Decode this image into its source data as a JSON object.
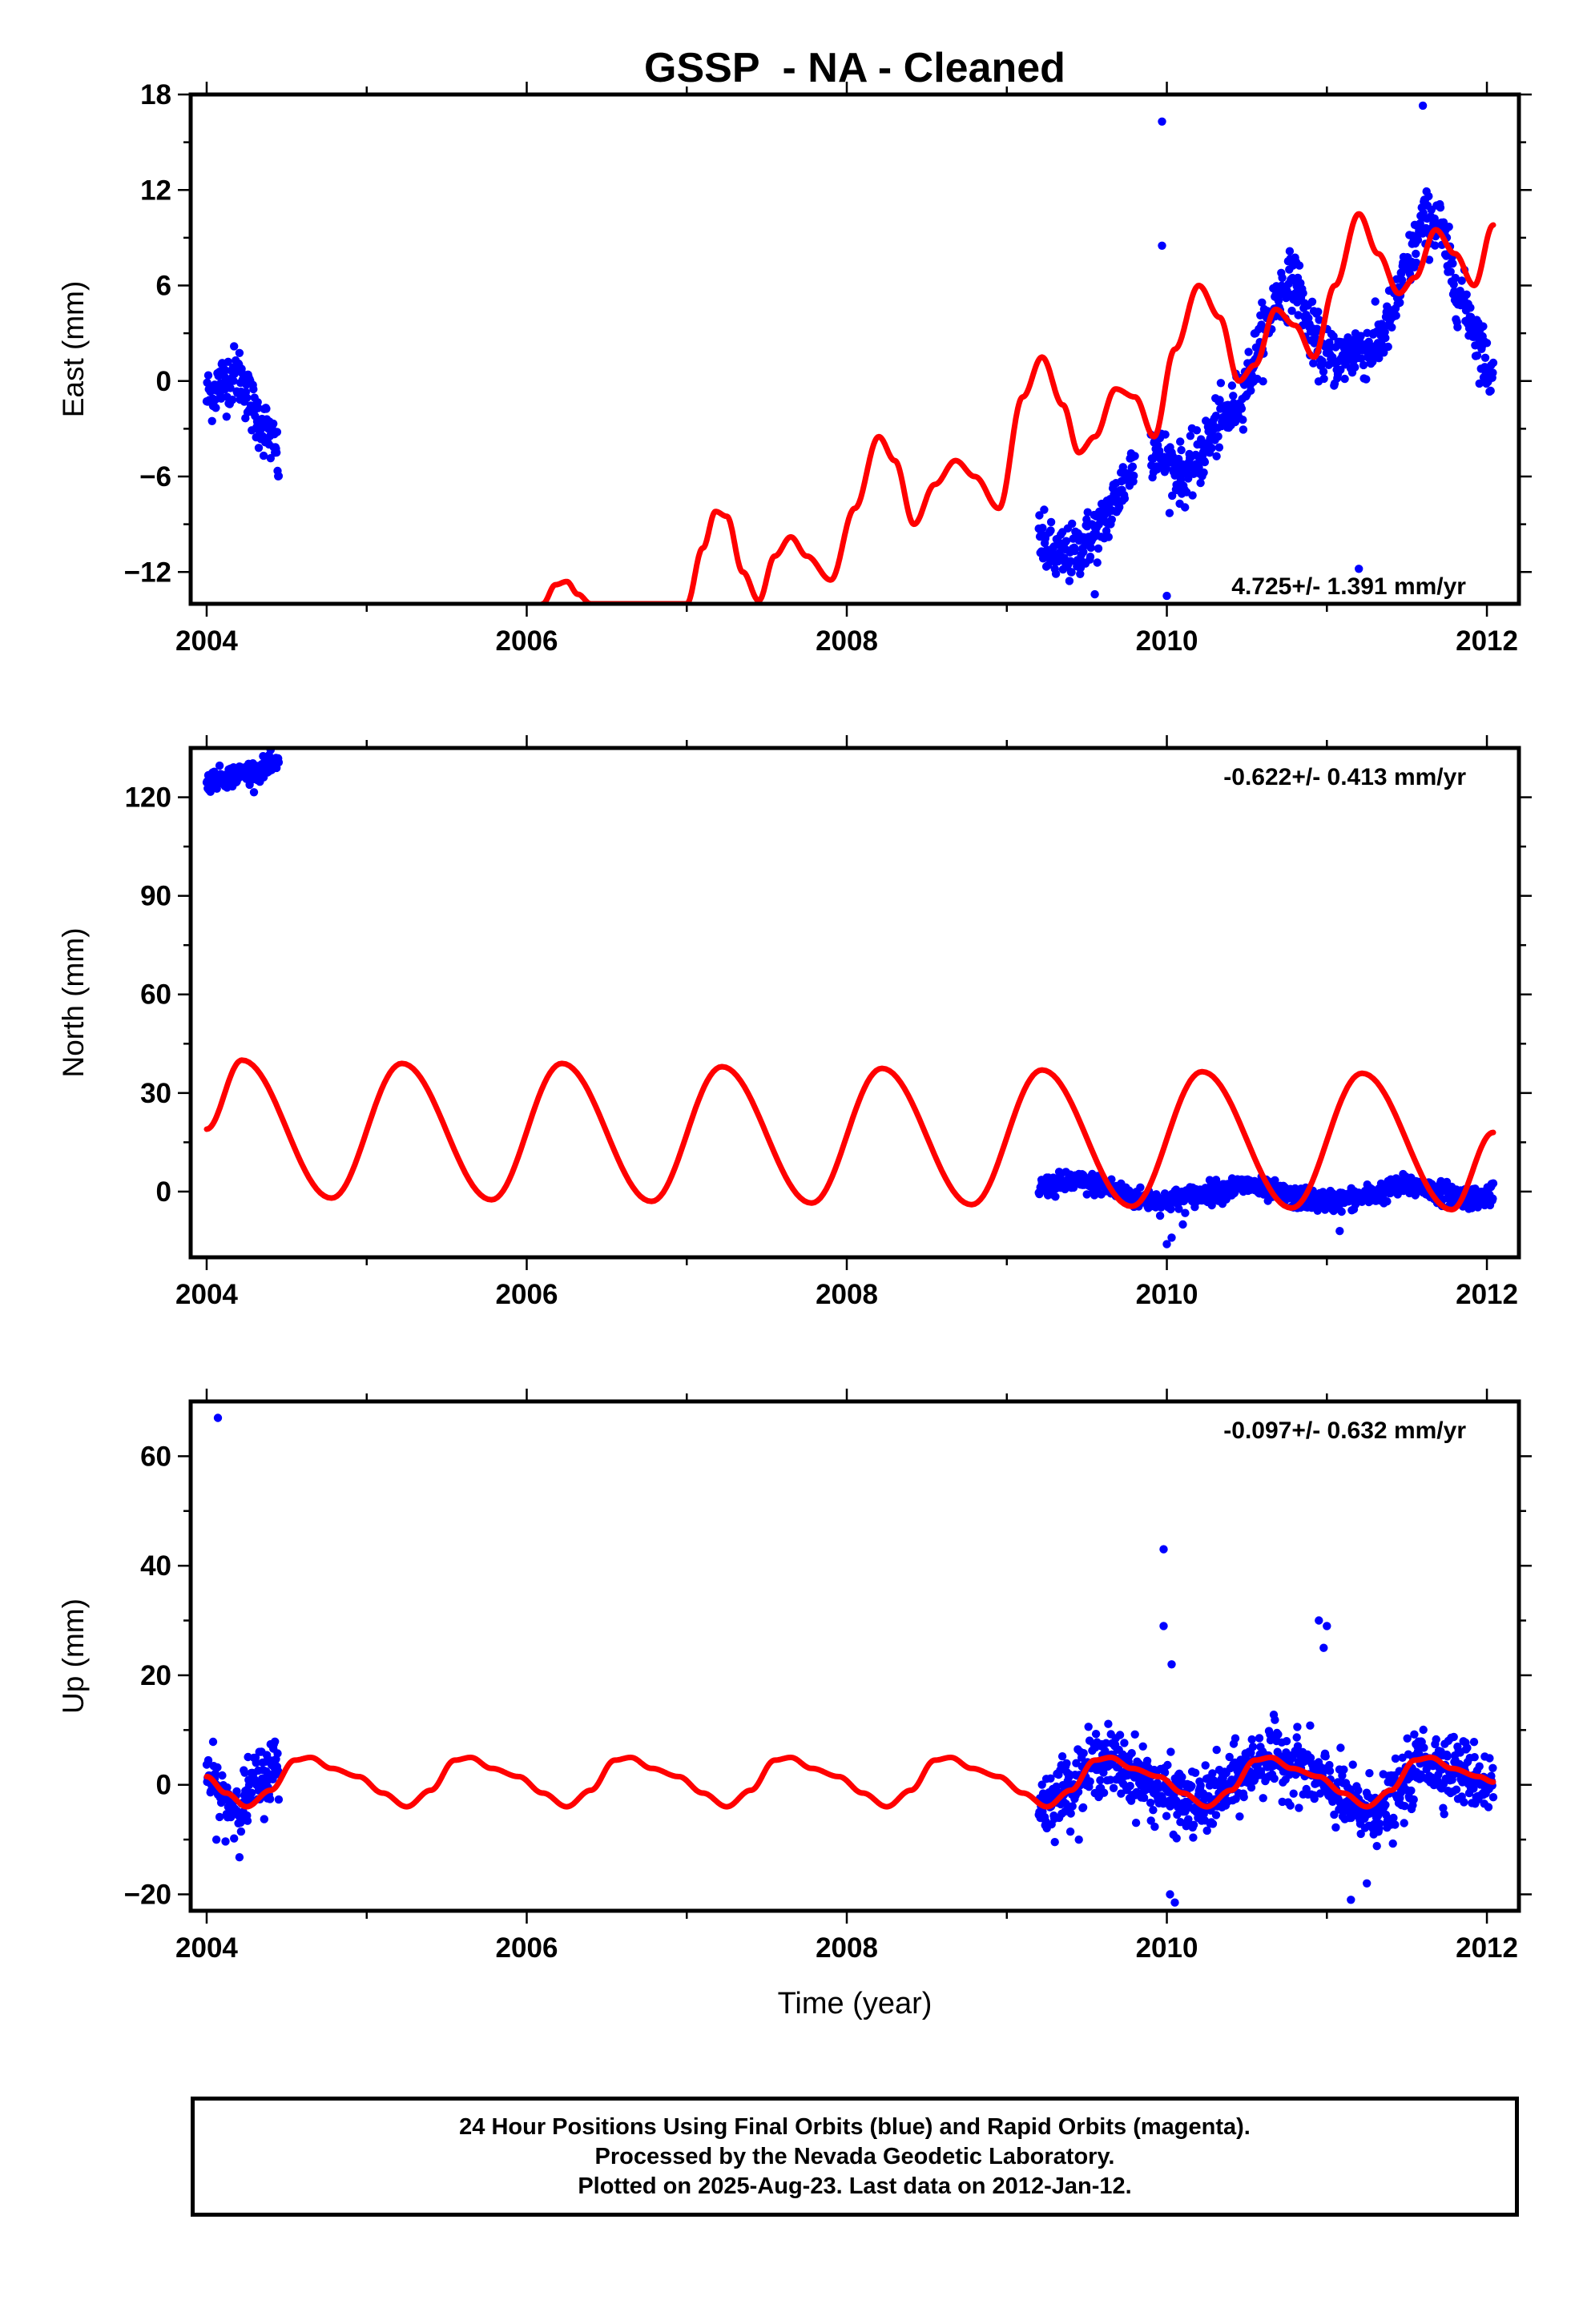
{
  "chart_data": [
    {
      "type": "scatter",
      "title": "GSSP  - NA - Cleaned",
      "ylabel": "East (mm)",
      "xlim": [
        2003.9,
        2012.2
      ],
      "ylim": [
        -14,
        18
      ],
      "xticks": [
        2004,
        2006,
        2008,
        2010,
        2012
      ],
      "yticks": [
        -12,
        -6,
        0,
        6,
        12,
        18
      ],
      "ytick_labels": [
        "−12",
        "−6",
        "0",
        "6",
        "12",
        "18"
      ],
      "grid": false,
      "rate_label": "4.725+/- 1.391 mm/yr",
      "series": [
        {
          "kind": "points",
          "color": "#0000ff",
          "segments": [
            {
              "x": [
                2004.0,
                2004.1,
                2004.2,
                2004.3,
                2004.4,
                2004.45
              ],
              "y": [
                -1,
                0,
                0.5,
                -2,
                -3.5,
                -5
              ]
            },
            {
              "x": [
                2009.2,
                2009.3,
                2009.4,
                2009.5,
                2009.6,
                2009.7,
                2009.8
              ],
              "y": [
                -10,
                -11,
                -11,
                -10,
                -9,
                -7,
                -5
              ]
            },
            {
              "x": [
                2009.9,
                2010.0,
                2010.1,
                2010.2,
                2010.3,
                2010.4,
                2010.5,
                2010.6,
                2010.7,
                2010.8,
                2010.9,
                2011.0,
                2011.1,
                2011.2,
                2011.3,
                2011.4,
                2011.5,
                2011.6,
                2011.7,
                2011.8,
                2011.9,
                2012.0,
                2012.04
              ],
              "y": [
                -4,
                -5,
                -6,
                -5,
                -3,
                -2,
                0,
                3,
                5.5,
                6.5,
                3,
                1.5,
                1.5,
                2,
                2,
                4,
                7,
                10,
                10,
                6,
                4,
                1,
                0
              ]
            }
          ],
          "outliers": [
            {
              "x": 2009.97,
              "y": 16.3
            },
            {
              "x": 2009.97,
              "y": 8.5
            },
            {
              "x": 2011.6,
              "y": 17.3
            },
            {
              "x": 2011.2,
              "y": -11.8
            },
            {
              "x": 2010.0,
              "y": -13.5
            },
            {
              "x": 2009.55,
              "y": -13.4
            }
          ]
        },
        {
          "kind": "line",
          "color": "#ff0000",
          "note": "seasonal model fit",
          "x": [
            2006.1,
            2006.18,
            2006.25,
            2006.32,
            2006.4,
            2007.0,
            2007.1,
            2007.18,
            2007.25,
            2007.35,
            2007.45,
            2007.55,
            2007.65,
            2007.75,
            2007.9,
            2008.05,
            2008.2,
            2008.3,
            2008.42,
            2008.55,
            2008.68,
            2008.8,
            2008.95,
            2009.1,
            2009.22,
            2009.35,
            2009.45,
            2009.55,
            2009.68,
            2009.8,
            2009.92,
            2010.05,
            2010.2,
            2010.33,
            2010.45,
            2010.55,
            2010.68,
            2010.8,
            2010.92,
            2011.05,
            2011.2,
            2011.32,
            2011.45,
            2011.55,
            2011.68,
            2011.8,
            2011.92,
            2012.04
          ],
          "y": [
            -14,
            -12.8,
            -12.6,
            -13.4,
            -14,
            -14,
            -10.5,
            -8.2,
            -8.5,
            -12,
            -13.8,
            -11,
            -9.8,
            -11,
            -12.5,
            -8,
            -3.5,
            -5,
            -9,
            -6.5,
            -5,
            -6,
            -8,
            -1,
            1.5,
            -1.5,
            -4.5,
            -3.5,
            -0.5,
            -1,
            -3.5,
            2,
            6,
            4,
            0,
            1,
            4.5,
            3.5,
            1.5,
            6,
            10.5,
            8,
            5.5,
            6.5,
            9.5,
            8,
            6,
            9.8
          ]
        }
      ]
    },
    {
      "type": "scatter",
      "ylabel": "North (mm)",
      "xlim": [
        2003.9,
        2012.2
      ],
      "ylim": [
        -20,
        135
      ],
      "xticks": [
        2004,
        2006,
        2008,
        2010,
        2012
      ],
      "yticks": [
        0,
        30,
        60,
        90,
        120
      ],
      "ytick_labels": [
        "0",
        "30",
        "60",
        "90",
        "120"
      ],
      "grid": false,
      "rate_label": "-0.622+/- 0.413 mm/yr",
      "series": [
        {
          "kind": "points",
          "color": "#0000ff",
          "segments": [
            {
              "x": [
                2004.0,
                2004.1,
                2004.2,
                2004.3,
                2004.45
              ],
              "y": [
                125,
                126,
                127,
                128,
                130
              ]
            },
            {
              "x": [
                2009.2,
                2009.4,
                2009.6,
                2009.8,
                2010.0,
                2010.2,
                2010.5,
                2010.8,
                2011.0,
                2011.2,
                2011.5,
                2011.7,
                2011.9,
                2012.04
              ],
              "y": [
                1,
                3,
                2,
                -2,
                -3,
                -1,
                2,
                -2,
                -3,
                -2,
                2,
                0,
                -2,
                -1
              ]
            }
          ],
          "outliers": [
            {
              "x": 2010.03,
              "y": -14
            },
            {
              "x": 2010.0,
              "y": -16
            },
            {
              "x": 2011.08,
              "y": -12
            },
            {
              "x": 2010.1,
              "y": -10
            }
          ]
        },
        {
          "kind": "line",
          "color": "#ff0000",
          "note": "seasonal model fit",
          "period": 1.0,
          "phase_peak": 2004.22,
          "x": [
            2004.0,
            2004.22,
            2004.78,
            2005.22,
            2005.78,
            2006.22,
            2006.78,
            2007.22,
            2007.78,
            2008.22,
            2008.78,
            2009.22,
            2009.78,
            2010.22,
            2010.78,
            2011.22,
            2011.78,
            2012.04
          ],
          "y": [
            19,
            40,
            -2,
            39,
            -2.5,
            39,
            -3,
            38,
            -3.5,
            37.5,
            -4,
            37,
            -4.5,
            36.5,
            -5,
            36,
            -5.5,
            18
          ]
        }
      ]
    },
    {
      "type": "scatter",
      "ylabel": "Up (mm)",
      "xlabel": "Time (year)",
      "xlim": [
        2003.9,
        2012.2
      ],
      "ylim": [
        -23,
        70
      ],
      "xticks": [
        2004,
        2006,
        2008,
        2010,
        2012
      ],
      "yticks": [
        -20,
        0,
        20,
        40,
        60
      ],
      "ytick_labels": [
        "−20",
        "0",
        "20",
        "40",
        "60"
      ],
      "grid": false,
      "rate_label": "-0.097+/- 0.632 mm/yr",
      "series": [
        {
          "kind": "points",
          "color": "#0000ff",
          "segments": [
            {
              "x": [
                2004.0,
                2004.1,
                2004.2,
                2004.3,
                2004.45
              ],
              "y": [
                2,
                -3,
                -4,
                0,
                4
              ]
            },
            {
              "x": [
                2009.2,
                2009.4,
                2009.6,
                2009.8,
                2010.0,
                2010.2,
                2010.4,
                2010.6,
                2010.8,
                2011.0,
                2011.2,
                2011.4,
                2011.6,
                2011.8,
                2012.04
              ],
              "y": [
                -4,
                0,
                5,
                2,
                -2,
                -4,
                0,
                5,
                4,
                0,
                -5,
                -4,
                5,
                3,
                0
              ]
            }
          ],
          "outliers": [
            {
              "x": 2004.07,
              "y": 67
            },
            {
              "x": 2009.98,
              "y": 43
            },
            {
              "x": 2009.98,
              "y": 29
            },
            {
              "x": 2010.03,
              "y": 22
            },
            {
              "x": 2010.02,
              "y": -20
            },
            {
              "x": 2010.05,
              "y": -21.5
            },
            {
              "x": 2010.95,
              "y": 30
            },
            {
              "x": 2011.0,
              "y": 29
            },
            {
              "x": 2010.98,
              "y": 25
            },
            {
              "x": 2011.25,
              "y": -18
            },
            {
              "x": 2011.15,
              "y": -21
            }
          ]
        },
        {
          "kind": "line",
          "color": "#ff0000",
          "note": "seasonal model fit",
          "x": [
            2004.0,
            2004.12,
            2004.25,
            2004.4,
            2004.55,
            2004.65,
            2004.78,
            2004.95,
            2005.1,
            2005.25,
            2005.4,
            2005.55,
            2005.65,
            2005.78,
            2005.95,
            2006.1,
            2006.25,
            2006.4,
            2006.55,
            2006.65,
            2006.78,
            2006.95,
            2007.1,
            2007.25,
            2007.4,
            2007.55,
            2007.65,
            2007.78,
            2007.95,
            2008.1,
            2008.25,
            2008.4,
            2008.55,
            2008.65,
            2008.78,
            2008.95,
            2009.1,
            2009.25,
            2009.4,
            2009.55,
            2009.65,
            2009.78,
            2009.95,
            2010.1,
            2010.25,
            2010.4,
            2010.55,
            2010.65,
            2010.78,
            2010.95,
            2011.1,
            2011.25,
            2011.4,
            2011.55,
            2011.65,
            2011.78,
            2011.95,
            2012.04
          ],
          "y": [
            1.5,
            -1.5,
            -4,
            -1,
            4.5,
            5,
            3,
            1.5,
            -1.5,
            -4,
            -1,
            4.5,
            5,
            3,
            1.5,
            -1.5,
            -4,
            -1,
            4.5,
            5,
            3,
            1.5,
            -1.5,
            -4,
            -1,
            4.5,
            5,
            3,
            1.5,
            -1.5,
            -4,
            -1,
            4.5,
            5,
            3,
            1.5,
            -1.5,
            -4,
            -1,
            4.5,
            5,
            3,
            1.5,
            -1.5,
            -4,
            -1,
            4.5,
            5,
            3,
            1.5,
            -1.5,
            -4,
            -1,
            4.5,
            5,
            3,
            1.5,
            0.5
          ]
        }
      ]
    }
  ],
  "footer": {
    "line1": "24 Hour Positions Using Final Orbits (blue) and Rapid Orbits (magenta).",
    "line2": "Processed by the Nevada Geodetic Laboratory.",
    "line3": "Plotted on 2025-Aug-23. Last data on 2012-Jan-12."
  }
}
